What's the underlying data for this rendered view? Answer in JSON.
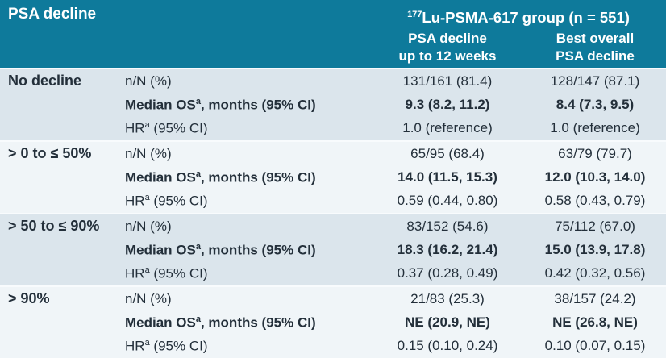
{
  "colors": {
    "header_bg": "#0e7a9b",
    "header_text": "#ffffff",
    "row_bg_dark": "#dbe5ec",
    "row_bg_light": "#f0f5f8",
    "separator": "#f8fbfd",
    "body_text": "#232f3a"
  },
  "header": {
    "row_label": "PSA decline",
    "group_title_sup": "177",
    "group_title": "Lu-PSMA-617 group (n = 551)",
    "col_psa12_line1": "PSA decline",
    "col_psa12_line2": "up to 12 weeks",
    "col_best_line1": "Best overall",
    "col_best_line2": "PSA decline"
  },
  "metrics": {
    "nn": {
      "pre": "n/N (%)",
      "sup": "",
      "post": ""
    },
    "os": {
      "pre": "Median OS",
      "sup": "a",
      "post": ", months (95% CI)"
    },
    "hr": {
      "pre": "HR",
      "sup": "a",
      "post": " (95% CI)"
    }
  },
  "groups": [
    {
      "category": "No decline",
      "nn": {
        "psa12": "131/161 (81.4)",
        "best": "128/147 (87.1)"
      },
      "os": {
        "psa12": "9.3 (8.2, 11.2)",
        "best": "8.4 (7.3, 9.5)"
      },
      "hr": {
        "psa12": "1.0 (reference)",
        "best": "1.0 (reference)"
      }
    },
    {
      "category": "> 0 to ≤ 50%",
      "nn": {
        "psa12": "65/95 (68.4)",
        "best": "63/79 (79.7)"
      },
      "os": {
        "psa12": "14.0 (11.5, 15.3)",
        "best": "12.0 (10.3, 14.0)"
      },
      "hr": {
        "psa12": "0.59 (0.44, 0.80)",
        "best": "0.58 (0.43, 0.79)"
      }
    },
    {
      "category": "> 50 to ≤ 90%",
      "nn": {
        "psa12": "83/152 (54.6)",
        "best": "75/112 (67.0)"
      },
      "os": {
        "psa12": "18.3 (16.2, 21.4)",
        "best": "15.0 (13.9, 17.8)"
      },
      "hr": {
        "psa12": "0.37 (0.28, 0.49)",
        "best": "0.42 (0.32, 0.56)"
      }
    },
    {
      "category": "> 90%",
      "nn": {
        "psa12": "21/83 (25.3)",
        "best": "38/157 (24.2)"
      },
      "os": {
        "psa12": "NE (20.9, NE)",
        "best": "NE (26.8, NE)"
      },
      "hr": {
        "psa12": "0.15 (0.10, 0.24)",
        "best": "0.10 (0.07, 0.15)"
      }
    }
  ]
}
